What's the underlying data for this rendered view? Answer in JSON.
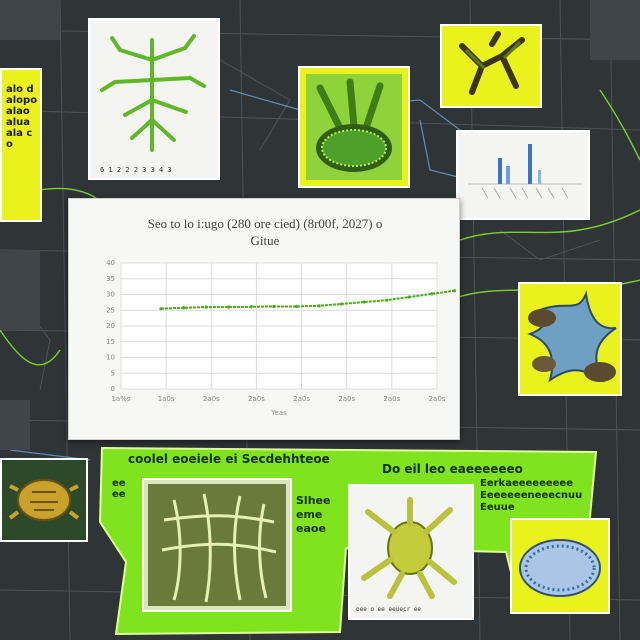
{
  "chart": {
    "title": "Seo to lo i:ugo (280 ore cied) (8r00f, 2027) o",
    "subtitle": "Gitue",
    "xlabel": "Yeas"
  },
  "chart_data": {
    "type": "line",
    "title": "Seo to lo i:ugo (280 ore cied) (8r00f, 2027) o",
    "subtitle": "Gitue",
    "xlabel": "Yeas",
    "ylabel": "",
    "x_ticks": [
      "1a%s",
      "1a0s",
      "2a0s",
      "2a0s",
      "2a0s",
      "2a0s",
      "2a0s",
      "2a0s"
    ],
    "y_ticks": [
      "0",
      "5",
      "10",
      "15",
      "20",
      "25",
      "30",
      "35",
      "40"
    ],
    "ylim": [
      0,
      40
    ],
    "grid": true,
    "series": [
      {
        "color": "#4caa1e",
        "x": [
          0,
          0.5,
          1,
          1.5,
          2,
          2.5,
          3,
          3.5,
          4,
          4.5,
          5,
          5.5,
          6,
          6.5
        ],
        "values": [
          25.5,
          25.8,
          26.0,
          26.0,
          26.1,
          26.2,
          26.2,
          26.4,
          27.0,
          27.6,
          28.2,
          29.2,
          30.2,
          31.2
        ]
      }
    ]
  },
  "left_note": {
    "text": "alo d alopo alao alua ala co"
  },
  "top_card": {
    "caption": "6 1 2 2 2 3 3 4 3"
  },
  "right_card": {
    "caption": ""
  },
  "banner": {
    "headline_1": "coolel eoeiele ei Secdehhteoe",
    "headline_2": "Do eil leo eaeeeeeeo",
    "side_text": "Slhee eme eaoe",
    "right_text": "Eerkaeeeeeeeee Eeeeeeeneeecnuu Eeuue",
    "left_text": "ee ee",
    "caption": "oee o ee eeuecr ee"
  },
  "colors": {
    "accent_green": "#7fe31e",
    "accent_yellow": "#e9f21c",
    "background": "#2f3436"
  },
  "icons": [
    "plant-specimen",
    "leaf-cluster",
    "root-specimen",
    "fungus-specimen",
    "tortoise-fossil",
    "fern-fossil",
    "coral-specimen",
    "seed-pod"
  ]
}
